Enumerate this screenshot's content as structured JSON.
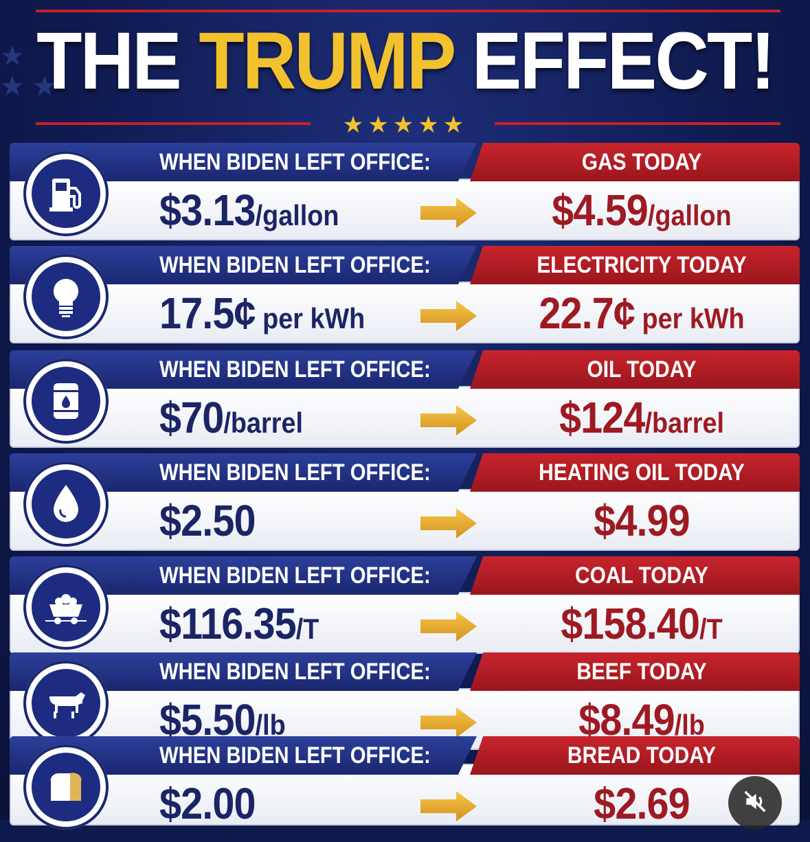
{
  "header": {
    "title_pre": "THE",
    "title_highlight": "TRUMP",
    "title_post": "EFFECT!",
    "stars": "★★★★★"
  },
  "colors": {
    "navy": "#1b2566",
    "red": "#9e1a22",
    "gold": "#f2c12e"
  },
  "rows": [
    {
      "icon": "gas-pump-icon",
      "left_label": "WHEN BIDEN LEFT OFFICE:",
      "left_value": "$3.13",
      "left_unit": "/gallon",
      "right_label": "GAS TODAY",
      "right_value": "$4.59",
      "right_unit": "/gallon"
    },
    {
      "icon": "light-bulb-icon",
      "left_label": "WHEN BIDEN LEFT OFFICE:",
      "left_value": "17.5¢",
      "left_unit": " per kWh",
      "right_label": "ELECTRICITY TODAY",
      "right_value": "22.7¢",
      "right_unit": " per kWh"
    },
    {
      "icon": "oil-barrel-icon",
      "left_label": "WHEN BIDEN LEFT OFFICE:",
      "left_value": "$70",
      "left_unit": "/barrel",
      "right_label": "OIL TODAY",
      "right_value": "$124",
      "right_unit": "/barrel"
    },
    {
      "icon": "oil-drop-icon",
      "left_label": "WHEN BIDEN LEFT OFFICE:",
      "left_value": "$2.50",
      "left_unit": "",
      "right_label": "HEATING OIL TODAY",
      "right_value": "$4.99",
      "right_unit": ""
    },
    {
      "icon": "coal-cart-icon",
      "left_label": "WHEN BIDEN LEFT OFFICE:",
      "left_value": "$116.35",
      "left_unit": "/T",
      "right_label": "COAL TODAY",
      "right_value": "$158.40",
      "right_unit": "/T"
    },
    {
      "icon": "cow-icon",
      "left_label": "WHEN BIDEN LEFT OFFICE:",
      "left_value": "$5.50",
      "left_unit": "/lb",
      "right_label": "BEEF TODAY",
      "right_value": "$8.49",
      "right_unit": "/lb"
    },
    {
      "icon": "bread-icon",
      "left_label": "WHEN BIDEN LEFT OFFICE:",
      "left_value": "$2.00",
      "left_unit": "",
      "right_label": "BREAD TODAY",
      "right_value": "$2.69",
      "right_unit": ""
    }
  ],
  "overlay": {
    "mute_icon": "muted-speaker-icon"
  }
}
